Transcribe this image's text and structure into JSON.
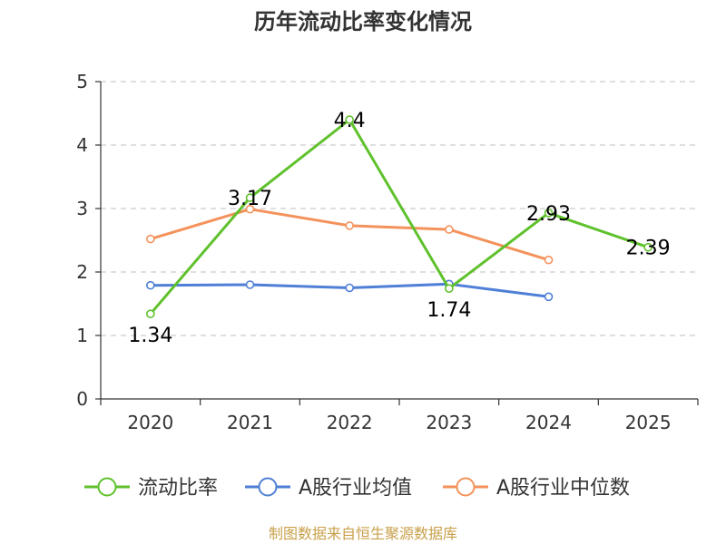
{
  "chart_data": {
    "type": "line",
    "title": "历年流动比率变化情况",
    "categories": [
      "2020",
      "2021",
      "2022",
      "2023",
      "2024",
      "2025"
    ],
    "ylim": [
      0,
      5
    ],
    "yticks": [
      "0",
      "1",
      "2",
      "3",
      "4",
      "5"
    ],
    "grid": true,
    "legend_position": "bottom",
    "series": [
      {
        "name": "流动比率",
        "color": "#5fc12c",
        "values": [
          1.34,
          3.17,
          4.4,
          1.74,
          2.93,
          2.39
        ],
        "labels": [
          "1.34",
          "3.17",
          "4.4",
          "1.74",
          "2.93",
          "2.39"
        ]
      },
      {
        "name": "A股行业均值",
        "color": "#4f7fd6",
        "values": [
          1.79,
          1.8,
          1.75,
          1.81,
          1.61,
          null
        ]
      },
      {
        "name": "A股行业中位数",
        "color": "#f4925b",
        "values": [
          2.52,
          2.99,
          2.73,
          2.67,
          2.19,
          null
        ]
      }
    ],
    "source": "制图数据来自恒生聚源数据库"
  }
}
